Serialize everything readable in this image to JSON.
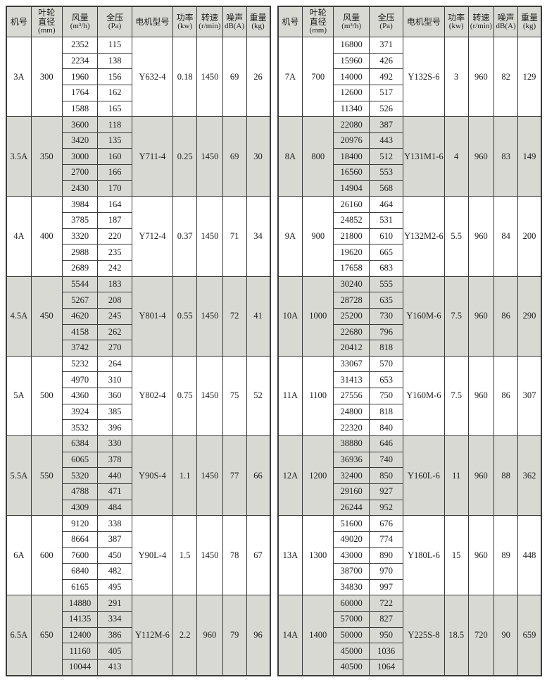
{
  "headers": [
    {
      "key": "model",
      "lines": [
        "机号"
      ]
    },
    {
      "key": "diameter",
      "lines": [
        "叶轮",
        "直径",
        "(mm)"
      ]
    },
    {
      "key": "airflow",
      "lines": [
        "风量",
        "(m³/h)"
      ]
    },
    {
      "key": "pressure",
      "lines": [
        "全压",
        "(Pa)"
      ]
    },
    {
      "key": "motor",
      "lines": [
        "电机型号"
      ]
    },
    {
      "key": "power",
      "lines": [
        "功率",
        "(kw)"
      ]
    },
    {
      "key": "speed",
      "lines": [
        "转速",
        "(r/min)"
      ]
    },
    {
      "key": "noise",
      "lines": [
        "噪声",
        "dB(A)"
      ]
    },
    {
      "key": "weight",
      "lines": [
        "重量",
        "(kg)"
      ]
    }
  ],
  "col_widths_pct": [
    9.4,
    11.8,
    13.5,
    12.9,
    15.6,
    9.1,
    9.7,
    9.1,
    8.9
  ],
  "colors": {
    "header_bg": "#d9d9d4",
    "shaded_row_bg": "#d9d9d4",
    "border": "#3b3b3b",
    "text": "#1c1c1c",
    "page_bg": "#ffffff"
  },
  "tables": [
    {
      "name": "fan-spec-table-left",
      "groups": [
        {
          "model": "3A",
          "diameter": "300",
          "rows": [
            [
              "2352",
              "115"
            ],
            [
              "2234",
              "138"
            ],
            [
              "1960",
              "156"
            ],
            [
              "1764",
              "162"
            ],
            [
              "1588",
              "165"
            ]
          ],
          "motor": "Y632-4",
          "power": "0.18",
          "speed": "1450",
          "noise": "69",
          "weight": "26"
        },
        {
          "model": "3.5A",
          "diameter": "350",
          "rows": [
            [
              "3600",
              "118"
            ],
            [
              "3420",
              "135"
            ],
            [
              "3000",
              "160"
            ],
            [
              "2700",
              "166"
            ],
            [
              "2430",
              "170"
            ]
          ],
          "motor": "Y711-4",
          "power": "0.25",
          "speed": "1450",
          "noise": "69",
          "weight": "30"
        },
        {
          "model": "4A",
          "diameter": "400",
          "rows": [
            [
              "3984",
              "164"
            ],
            [
              "3785",
              "187"
            ],
            [
              "3320",
              "220"
            ],
            [
              "2988",
              "235"
            ],
            [
              "2689",
              "242"
            ]
          ],
          "motor": "Y712-4",
          "power": "0.37",
          "speed": "1450",
          "noise": "71",
          "weight": "34"
        },
        {
          "model": "4.5A",
          "diameter": "450",
          "rows": [
            [
              "5544",
              "183"
            ],
            [
              "5267",
              "208"
            ],
            [
              "4620",
              "245"
            ],
            [
              "4158",
              "262"
            ],
            [
              "3742",
              "270"
            ]
          ],
          "motor": "Y801-4",
          "power": "0.55",
          "speed": "1450",
          "noise": "72",
          "weight": "41"
        },
        {
          "model": "5A",
          "diameter": "500",
          "rows": [
            [
              "5232",
              "264"
            ],
            [
              "4970",
              "310"
            ],
            [
              "4360",
              "360"
            ],
            [
              "3924",
              "385"
            ],
            [
              "3532",
              "396"
            ]
          ],
          "motor": "Y802-4",
          "power": "0.75",
          "speed": "1450",
          "noise": "75",
          "weight": "52"
        },
        {
          "model": "5.5A",
          "diameter": "550",
          "rows": [
            [
              "6384",
              "330"
            ],
            [
              "6065",
              "378"
            ],
            [
              "5320",
              "440"
            ],
            [
              "4788",
              "471"
            ],
            [
              "4309",
              "484"
            ]
          ],
          "motor": "Y90S-4",
          "power": "1.1",
          "speed": "1450",
          "noise": "77",
          "weight": "66"
        },
        {
          "model": "6A",
          "diameter": "600",
          "rows": [
            [
              "9120",
              "338"
            ],
            [
              "8664",
              "387"
            ],
            [
              "7600",
              "450"
            ],
            [
              "6840",
              "482"
            ],
            [
              "6165",
              "495"
            ]
          ],
          "motor": "Y90L-4",
          "power": "1.5",
          "speed": "1450",
          "noise": "78",
          "weight": "67"
        },
        {
          "model": "6.5A",
          "diameter": "650",
          "rows": [
            [
              "14880",
              "291"
            ],
            [
              "14135",
              "334"
            ],
            [
              "12400",
              "386"
            ],
            [
              "11160",
              "405"
            ],
            [
              "10044",
              "413"
            ]
          ],
          "motor": "Y112M-6",
          "power": "2.2",
          "speed": "960",
          "noise": "79",
          "weight": "96"
        }
      ]
    },
    {
      "name": "fan-spec-table-right",
      "groups": [
        {
          "model": "7A",
          "diameter": "700",
          "rows": [
            [
              "16800",
              "371"
            ],
            [
              "15960",
              "426"
            ],
            [
              "14000",
              "492"
            ],
            [
              "12600",
              "517"
            ],
            [
              "11340",
              "526"
            ]
          ],
          "motor": "Y132S-6",
          "power": "3",
          "speed": "960",
          "noise": "82",
          "weight": "129"
        },
        {
          "model": "8A",
          "diameter": "800",
          "rows": [
            [
              "22080",
              "387"
            ],
            [
              "20976",
              "443"
            ],
            [
              "18400",
              "512"
            ],
            [
              "16560",
              "553"
            ],
            [
              "14904",
              "568"
            ]
          ],
          "motor": "Y131M1-6",
          "power": "4",
          "speed": "960",
          "noise": "83",
          "weight": "149"
        },
        {
          "model": "9A",
          "diameter": "900",
          "rows": [
            [
              "26160",
              "464"
            ],
            [
              "24852",
              "531"
            ],
            [
              "21800",
              "610"
            ],
            [
              "19620",
              "665"
            ],
            [
              "17658",
              "683"
            ]
          ],
          "motor": "Y132M2-6",
          "power": "5.5",
          "speed": "960",
          "noise": "84",
          "weight": "200"
        },
        {
          "model": "10A",
          "diameter": "1000",
          "rows": [
            [
              "30240",
              "555"
            ],
            [
              "28728",
              "635"
            ],
            [
              "25200",
              "730"
            ],
            [
              "22680",
              "796"
            ],
            [
              "20412",
              "818"
            ]
          ],
          "motor": "Y160M-6",
          "power": "7.5",
          "speed": "960",
          "noise": "86",
          "weight": "290"
        },
        {
          "model": "11A",
          "diameter": "1100",
          "rows": [
            [
              "33067",
              "570"
            ],
            [
              "31413",
              "653"
            ],
            [
              "27556",
              "750"
            ],
            [
              "24800",
              "818"
            ],
            [
              "22320",
              "840"
            ]
          ],
          "motor": "Y160M-6",
          "power": "7.5",
          "speed": "960",
          "noise": "86",
          "weight": "307"
        },
        {
          "model": "12A",
          "diameter": "1200",
          "rows": [
            [
              "38880",
              "646"
            ],
            [
              "36936",
              "740"
            ],
            [
              "32400",
              "850"
            ],
            [
              "29160",
              "927"
            ],
            [
              "26244",
              "952"
            ]
          ],
          "motor": "Y160L-6",
          "power": "11",
          "speed": "960",
          "noise": "88",
          "weight": "362"
        },
        {
          "model": "13A",
          "diameter": "1300",
          "rows": [
            [
              "51600",
              "676"
            ],
            [
              "49020",
              "774"
            ],
            [
              "43000",
              "890"
            ],
            [
              "38700",
              "970"
            ],
            [
              "34830",
              "997"
            ]
          ],
          "motor": "Y180L-6",
          "power": "15",
          "speed": "960",
          "noise": "89",
          "weight": "448"
        },
        {
          "model": "14A",
          "diameter": "1400",
          "rows": [
            [
              "60000",
              "722"
            ],
            [
              "57000",
              "827"
            ],
            [
              "50000",
              "950"
            ],
            [
              "45000",
              "1036"
            ],
            [
              "40500",
              "1064"
            ]
          ],
          "motor": "Y225S-8",
          "power": "18.5",
          "speed": "720",
          "noise": "90",
          "weight": "659"
        }
      ]
    }
  ]
}
